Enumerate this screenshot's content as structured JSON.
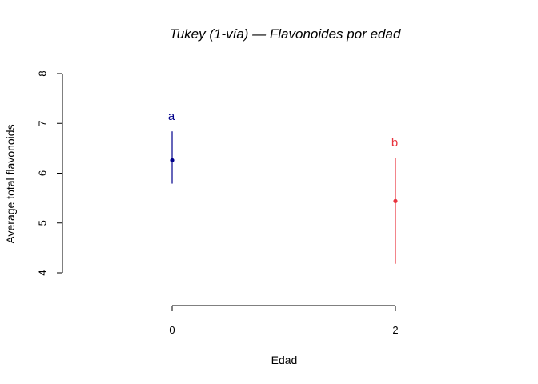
{
  "chart_data": {
    "type": "scatter",
    "title": "Tukey (1-vía) — Flavonoides por edad",
    "xlabel": "Edad",
    "ylabel": "Average total flavonoids",
    "ylim": [
      4,
      8
    ],
    "yticks": [
      "4",
      "5",
      "6",
      "7",
      "8"
    ],
    "xticks": [
      "0",
      "2"
    ],
    "grid": false,
    "legend": "none",
    "groups": [
      {
        "x": "0",
        "mean": 6.26,
        "lower": 5.79,
        "upper": 6.84,
        "letter": "a",
        "color": "#00008b"
      },
      {
        "x": "2",
        "mean": 5.44,
        "lower": 4.18,
        "upper": 6.31,
        "letter": "b",
        "color": "#e8343e"
      }
    ]
  }
}
